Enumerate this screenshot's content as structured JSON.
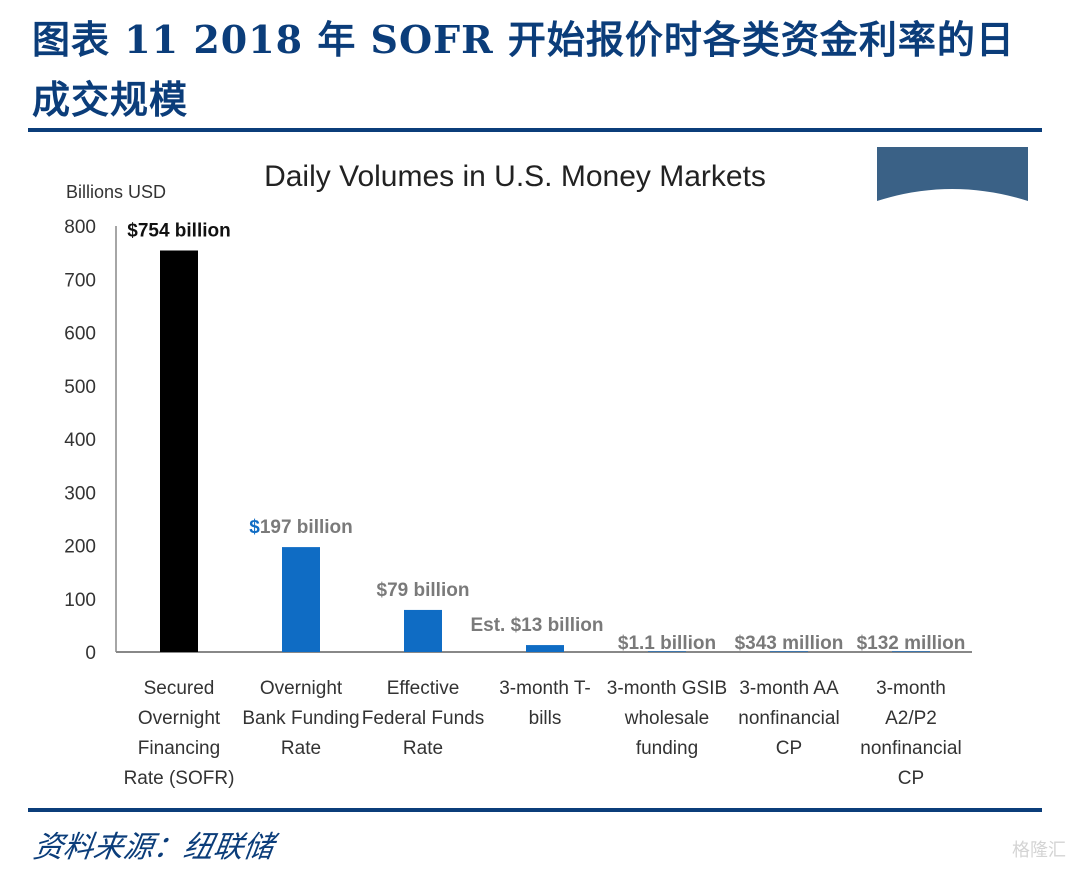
{
  "header": {
    "figure_title_line1": "图表 11   2018 年 SOFR 开始报价时各类资金利率的日",
    "figure_title_line2": "成交规模"
  },
  "footer": {
    "source": "资料来源：纽联储",
    "watermark": "格隆汇"
  },
  "colors": {
    "accent": "#0b3d7a",
    "sofr_bar": "#000000",
    "other_bar": "#0f6cc4",
    "deco_banner": "#3a6186"
  },
  "chart_data": {
    "type": "bar",
    "title": "Daily Volumes in U.S. Money Markets",
    "ylabel": "Billions USD",
    "xlabel": "",
    "ylim": [
      0,
      800
    ],
    "yticks": [
      0,
      100,
      200,
      300,
      400,
      500,
      600,
      700,
      800
    ],
    "grid": false,
    "legend": "none",
    "categories": [
      [
        "Secured",
        "Overnight",
        "Financing",
        "Rate (SOFR)"
      ],
      [
        "Overnight",
        "Bank Funding",
        "Rate"
      ],
      [
        "Effective",
        "Federal Funds",
        "Rate"
      ],
      [
        "3-month T-",
        "bills"
      ],
      [
        "3-month GSIB",
        "wholesale",
        "funding"
      ],
      [
        "3-month AA",
        "nonfinancial",
        "CP"
      ],
      [
        "3-month",
        "A2/P2",
        "nonfinancial",
        "CP"
      ]
    ],
    "values": [
      754,
      197,
      79,
      13,
      1.1,
      0.343,
      0.132
    ],
    "data_labels": [
      "$754 billion",
      "$197 billion",
      "$79 billion",
      "Est. $13 billion",
      "$1.1 billion",
      "$343 million",
      "$132 million"
    ],
    "bar_colors": [
      "#000000",
      "#0f6cc4",
      "#0f6cc4",
      "#0f6cc4",
      "#0f6cc4",
      "#0f6cc4",
      "#0f6cc4"
    ],
    "label_colors": [
      "#111111",
      "#7a7a7a",
      "#7a7a7a",
      "#7a7a7a",
      "#7a7a7a",
      "#7a7a7a",
      "#7a7a7a"
    ]
  }
}
